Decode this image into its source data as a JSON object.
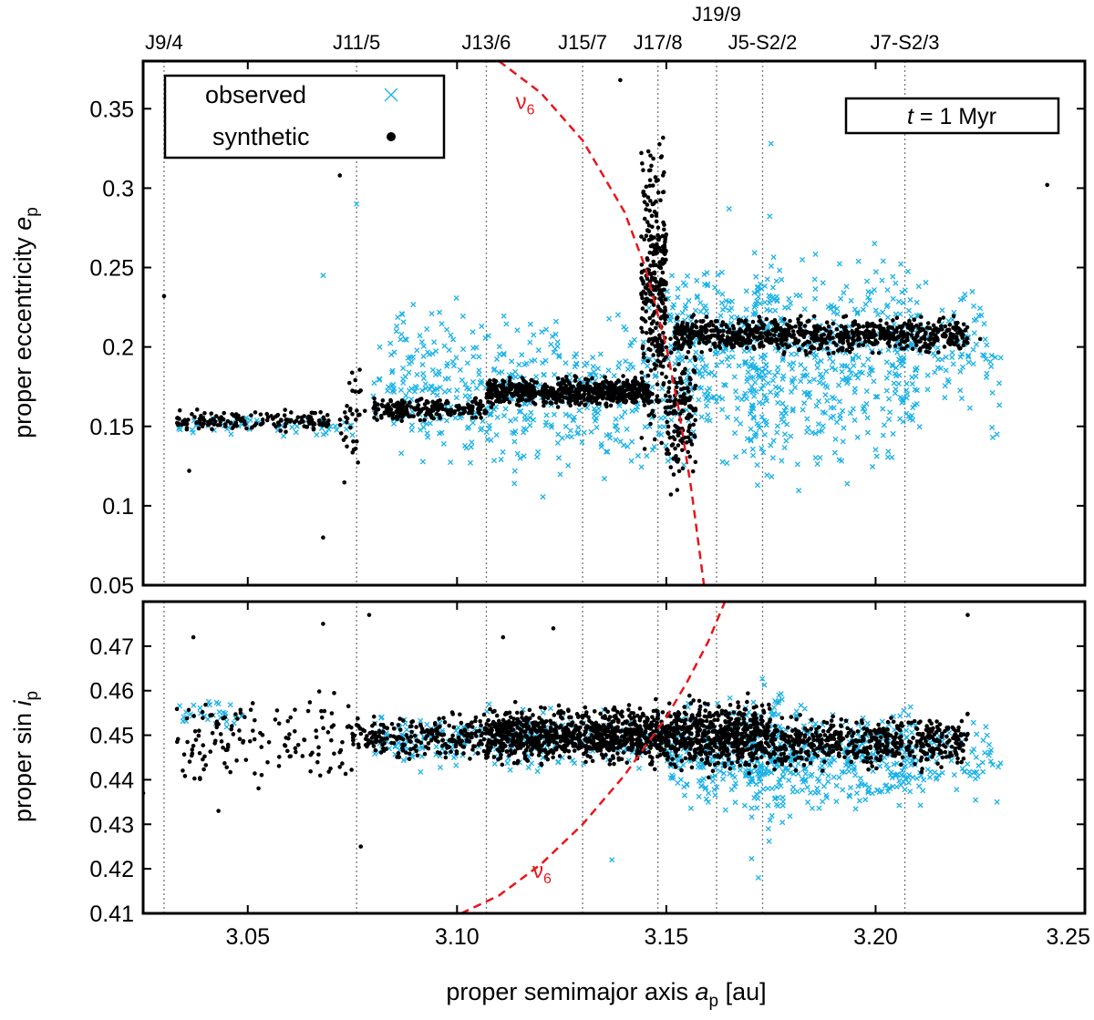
{
  "chart_data": [
    {
      "type": "scatter",
      "panel": "top",
      "ylabel": "proper eccentricity e_p",
      "ylabel_parts": {
        "main": "proper eccentricity ",
        "var": "e",
        "sub": "p"
      },
      "xlim": [
        3.025,
        3.25
      ],
      "ylim": [
        0.05,
        0.38
      ],
      "yticks": [
        0.05,
        0.1,
        0.15,
        0.2,
        0.25,
        0.3,
        0.35
      ],
      "ytick_labels": [
        "0.05",
        "0.1",
        "0.15",
        "0.2",
        "0.25",
        "0.3",
        "0.35"
      ],
      "grid": false,
      "legend": {
        "position": "top-left",
        "entries": [
          {
            "label": "observed",
            "marker": "x",
            "color": "#1ab2e6"
          },
          {
            "label": "synthetic",
            "marker": "dot",
            "color": "#000000"
          }
        ]
      },
      "annotation": {
        "var": "t",
        "rest": " = 1 Myr"
      },
      "nu6_label": {
        "main": "ν",
        "sub": "6",
        "x": 3.114,
        "y": 0.35
      },
      "nu6_curve": {
        "color": "#e8161b",
        "a": [
          3.11,
          3.12,
          3.13,
          3.14,
          3.145,
          3.15,
          3.153,
          3.156,
          3.158,
          3.159
        ],
        "e": [
          0.38,
          0.36,
          0.33,
          0.285,
          0.25,
          0.2,
          0.16,
          0.11,
          0.07,
          0.05
        ]
      },
      "series": [
        {
          "name": "observed",
          "marker": "x",
          "color": "#1ab2e6",
          "clusters": [
            {
              "a": [
                3.033,
                3.075
              ],
              "e": [
                0.14,
                0.16
              ],
              "n": 60
            },
            {
              "a": [
                3.08,
                3.105
              ],
              "e": [
                0.11,
                0.24
              ],
              "n": 170
            },
            {
              "a": [
                3.105,
                3.15
              ],
              "e": [
                0.1,
                0.24
              ],
              "n": 320
            },
            {
              "a": [
                3.15,
                3.21
              ],
              "e": [
                0.1,
                0.28
              ],
              "n": 650
            },
            {
              "a": [
                3.17,
                3.178
              ],
              "e": [
                0.09,
                0.3
              ],
              "n": 80
            },
            {
              "a": [
                3.205,
                3.23
              ],
              "e": [
                0.14,
                0.26
              ],
              "n": 110
            }
          ],
          "points": [
            {
              "x": 3.076,
              "y": 0.29
            },
            {
              "x": 3.068,
              "y": 0.245
            },
            {
              "x": 3.175,
              "y": 0.328
            },
            {
              "x": 3.165,
              "y": 0.287
            },
            {
              "x": 3.228,
              "y": 0.143
            },
            {
              "x": 3.229,
              "y": 0.145
            }
          ]
        },
        {
          "name": "synthetic",
          "marker": "dot",
          "color": "#000000",
          "clusters": [
            {
              "a": [
                3.033,
                3.07
              ],
              "e": [
                0.145,
                0.162
              ],
              "n": 160
            },
            {
              "a": [
                3.072,
                3.078
              ],
              "e": [
                0.11,
                0.19
              ],
              "n": 35
            },
            {
              "a": [
                3.08,
                3.107
              ],
              "e": [
                0.152,
                0.17
              ],
              "n": 220
            },
            {
              "a": [
                3.107,
                3.146
              ],
              "e": [
                0.16,
                0.183
              ],
              "n": 650
            },
            {
              "a": [
                3.144,
                3.15
              ],
              "e": [
                0.12,
                0.355
              ],
              "n": 320
            },
            {
              "a": [
                3.15,
                3.157
              ],
              "e": [
                0.1,
                0.23
              ],
              "n": 160
            },
            {
              "a": [
                3.152,
                3.222
              ],
              "e": [
                0.193,
                0.222
              ],
              "n": 780
            }
          ],
          "points": [
            {
              "x": 3.03,
              "y": 0.232
            },
            {
              "x": 3.072,
              "y": 0.308
            },
            {
              "x": 3.068,
              "y": 0.08
            },
            {
              "x": 3.139,
              "y": 0.368
            },
            {
              "x": 3.241,
              "y": 0.302
            },
            {
              "x": 3.225,
              "y": 0.205
            },
            {
              "x": 3.036,
              "y": 0.122
            }
          ]
        }
      ]
    },
    {
      "type": "scatter",
      "panel": "bottom",
      "xlabel": "proper semimajor axis a_p [au]",
      "xlabel_parts": {
        "main": "proper semimajor axis ",
        "var": "a",
        "sub": "p",
        "unit": " [au]"
      },
      "ylabel": "proper sin i_p",
      "ylabel_parts": {
        "main": "proper sin ",
        "var": "i",
        "sub": "p"
      },
      "xlim": [
        3.025,
        3.25
      ],
      "ylim": [
        0.41,
        0.48
      ],
      "xticks": [
        3.05,
        3.1,
        3.15,
        3.2,
        3.25
      ],
      "xtick_labels": [
        "3.05",
        "3.10",
        "3.15",
        "3.20",
        "3.25"
      ],
      "yticks": [
        0.41,
        0.42,
        0.43,
        0.44,
        0.45,
        0.46,
        0.47
      ],
      "ytick_labels": [
        "0.41",
        "0.42",
        "0.43",
        "0.44",
        "0.45",
        "0.46",
        "0.47"
      ],
      "grid": false,
      "nu6_label": {
        "main": "ν",
        "sub": "6",
        "x": 3.118,
        "y": 0.418
      },
      "nu6_curve": {
        "color": "#e8161b",
        "a": [
          3.101,
          3.11,
          3.12,
          3.13,
          3.14,
          3.15,
          3.155,
          3.16,
          3.164
        ],
        "s": [
          0.41,
          0.414,
          0.421,
          0.43,
          0.441,
          0.454,
          0.462,
          0.471,
          0.48
        ]
      },
      "series": [
        {
          "name": "observed",
          "marker": "x",
          "color": "#1ab2e6",
          "clusters": [
            {
              "a": [
                3.033,
                3.05
              ],
              "e": [
                0.45,
                0.46
              ],
              "n": 30
            },
            {
              "a": [
                3.08,
                3.15
              ],
              "e": [
                0.44,
                0.458
              ],
              "n": 260
            },
            {
              "a": [
                3.15,
                3.21
              ],
              "e": [
                0.43,
                0.46
              ],
              "n": 540
            },
            {
              "a": [
                3.17,
                3.178
              ],
              "e": [
                0.416,
                0.472
              ],
              "n": 70
            },
            {
              "a": [
                3.205,
                3.23
              ],
              "e": [
                0.432,
                0.458
              ],
              "n": 90
            }
          ],
          "points": [
            {
              "x": 3.137,
              "y": 0.422
            },
            {
              "x": 3.229,
              "y": 0.435
            },
            {
              "x": 3.172,
              "y": 0.418
            }
          ]
        },
        {
          "name": "synthetic",
          "marker": "dot",
          "color": "#000000",
          "clusters": [
            {
              "a": [
                3.033,
                3.075
              ],
              "e": [
                0.436,
                0.462
              ],
              "n": 140
            },
            {
              "a": [
                3.075,
                3.107
              ],
              "e": [
                0.443,
                0.456
              ],
              "n": 240
            },
            {
              "a": [
                3.107,
                3.146
              ],
              "e": [
                0.442,
                0.458
              ],
              "n": 820
            },
            {
              "a": [
                3.146,
                3.176
              ],
              "e": [
                0.44,
                0.46
              ],
              "n": 700
            },
            {
              "a": [
                3.176,
                3.222
              ],
              "e": [
                0.441,
                0.456
              ],
              "n": 520
            }
          ],
          "points": [
            {
              "x": 3.037,
              "y": 0.472
            },
            {
              "x": 3.068,
              "y": 0.475
            },
            {
              "x": 3.079,
              "y": 0.477
            },
            {
              "x": 3.123,
              "y": 0.474
            },
            {
              "x": 3.222,
              "y": 0.477
            },
            {
              "x": 3.111,
              "y": 0.472
            },
            {
              "x": 3.077,
              "y": 0.425
            },
            {
              "x": 3.025,
              "y": 0.437
            },
            {
              "x": 3.043,
              "y": 0.433
            }
          ]
        }
      ]
    }
  ],
  "resonances": [
    {
      "label": "J9/4",
      "a": 3.03,
      "row": 0
    },
    {
      "label": "J11/5",
      "a": 3.076,
      "row": 0
    },
    {
      "label": "J13/6",
      "a": 3.107,
      "row": 0
    },
    {
      "label": "J15/7",
      "a": 3.13,
      "row": 0
    },
    {
      "label": "J17/8",
      "a": 3.148,
      "row": 0
    },
    {
      "label": "J19/9",
      "a": 3.162,
      "row": 1
    },
    {
      "label": "J5-S2/2",
      "a": 3.173,
      "row": 0
    },
    {
      "label": "J7-S2/3",
      "a": 3.207,
      "row": 0
    }
  ]
}
